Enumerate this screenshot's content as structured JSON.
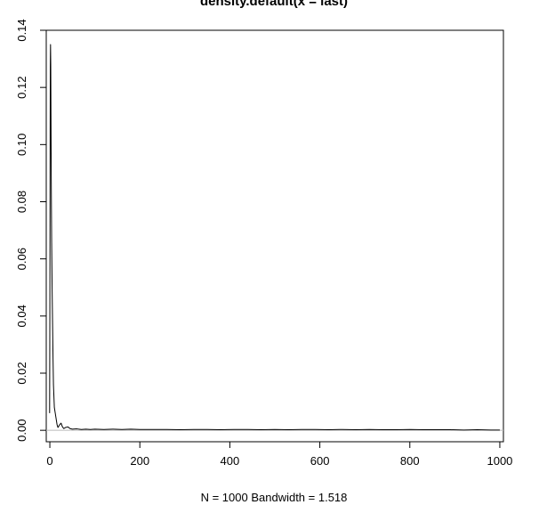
{
  "chart_data": {
    "type": "line",
    "title": "density.default(x = last)",
    "xlabel": "N = 1000   Bandwidth = 1.518",
    "ylabel": "",
    "xlim": [
      -8,
      1008
    ],
    "ylim": [
      -0.004,
      0.14
    ],
    "xticks": [
      0,
      200,
      400,
      600,
      800,
      1000
    ],
    "xtick_labels": [
      "0",
      "200",
      "400",
      "600",
      "800",
      "1000"
    ],
    "yticks": [
      0.0,
      0.02,
      0.04,
      0.06,
      0.08,
      0.1,
      0.12,
      0.14
    ],
    "ytick_labels": [
      "0.00",
      "0.02",
      "0.04",
      "0.06",
      "0.08",
      "0.10",
      "0.12",
      "0.14"
    ],
    "grid": false,
    "baseline_y": 0,
    "baseline_color": "#bbbbbb",
    "line_color": "#000000",
    "series": [
      {
        "x": [
          -0.5,
          0,
          0.5,
          1,
          1.5,
          2,
          2.5,
          3,
          3.5,
          4,
          5,
          6,
          7,
          8,
          10,
          12,
          14,
          16,
          18,
          20,
          22,
          25,
          28,
          31,
          35,
          40,
          45,
          50,
          60,
          70,
          80,
          90,
          100,
          120,
          140,
          160,
          180,
          200,
          230,
          260,
          290,
          320,
          350,
          380,
          410,
          440,
          470,
          500,
          530,
          560,
          590,
          620,
          650,
          680,
          710,
          740,
          770,
          800,
          830,
          860,
          890,
          920,
          950,
          980,
          1000
        ],
        "y": [
          0.006,
          0.04,
          0.09,
          0.127,
          0.135,
          0.128,
          0.11,
          0.092,
          0.078,
          0.066,
          0.05,
          0.038,
          0.026,
          0.016,
          0.008,
          0.006,
          0.004,
          0.002,
          0.001,
          0.0015,
          0.002,
          0.0025,
          0.0012,
          0.0006,
          0.001,
          0.0012,
          0.0006,
          0.0004,
          0.0005,
          0.0003,
          0.0004,
          0.0003,
          0.0004,
          0.0003,
          0.0004,
          0.0003,
          0.0004,
          0.0003,
          0.0003,
          0.0003,
          0.0002,
          0.0003,
          0.0003,
          0.0002,
          0.0003,
          0.0003,
          0.0002,
          0.0003,
          0.0002,
          0.0003,
          0.0003,
          0.0002,
          0.0003,
          0.0002,
          0.0003,
          0.0002,
          0.0002,
          0.0003,
          0.0002,
          0.0002,
          0.0002,
          0.0001,
          0.0002,
          0.0001,
          0.0001
        ]
      }
    ]
  }
}
